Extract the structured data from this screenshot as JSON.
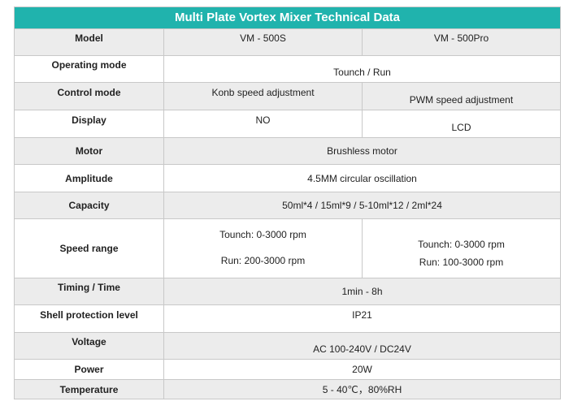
{
  "title": "Multi Plate Vortex Mixer Technical Data",
  "rows": {
    "model": {
      "label": "Model",
      "a": "VM - 500S",
      "b": "VM - 500Pro"
    },
    "operating_mode": {
      "label": "Operating mode",
      "value": "Tounch / Run"
    },
    "control_mode": {
      "label": "Control mode",
      "a": "Konb speed adjustment",
      "b": "PWM speed adjustment"
    },
    "display": {
      "label": "Display",
      "a": "NO",
      "b": "LCD"
    },
    "motor": {
      "label": "Motor",
      "value": "Brushless motor"
    },
    "amplitude": {
      "label": "Amplitude",
      "value": "4.5MM circular oscillation"
    },
    "capacity": {
      "label": "Capacity",
      "value": "50ml*4 / 15ml*9 / 5-10ml*12 / 2ml*24"
    },
    "speed_range": {
      "label": "Speed range",
      "a1": "Tounch: 0-3000 rpm",
      "a2": "Run: 200-3000 rpm",
      "b1": "Tounch: 0-3000 rpm",
      "b2": "Run: 100-3000 rpm"
    },
    "timing": {
      "label": "Timing / Time",
      "value": "1min - 8h"
    },
    "shell": {
      "label": "Shell protection level",
      "value": "IP21"
    },
    "voltage": {
      "label": "Voltage",
      "value": "AC 100-240V / DC24V"
    },
    "power": {
      "label": "Power",
      "value": "20W"
    },
    "temperature": {
      "label": "Temperature",
      "value": "5 - 40℃，80%RH"
    }
  }
}
